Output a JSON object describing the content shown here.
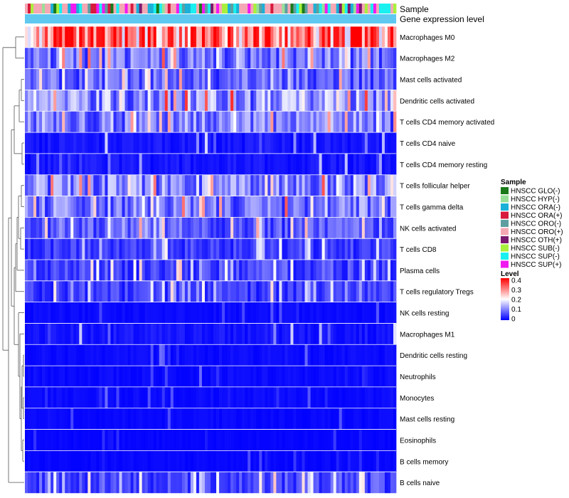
{
  "chart_data": {
    "type": "heatmap",
    "title": "",
    "annotation_rows": [
      "Sample",
      "Gene expression level"
    ],
    "rows": [
      "Macrophages M0",
      "Macrophages M2",
      "Mast cells activated",
      "Dendritic cells activated",
      "T cells CD4 memory activated",
      "T cells CD4 naive",
      "T cells CD4 memory resting",
      "T cells follicular helper",
      "T cells gamma delta",
      "NK cells activated",
      "T cells CD8",
      "Plasma cells",
      "T cells regulatory  Tregs",
      "NK cells resting",
      "Macrophages M1",
      "Dendritic cells resting",
      "Neutrophils",
      "Monocytes",
      "Mast cells resting",
      "Eosinophils",
      "B cells memory",
      "B cells naive"
    ],
    "n_columns": 130,
    "row_mean_level": [
      0.3,
      0.1,
      0.08,
      0.12,
      0.1,
      0.03,
      0.03,
      0.11,
      0.1,
      0.07,
      0.05,
      0.06,
      0.05,
      0.015,
      0.03,
      0.015,
      0.015,
      0.015,
      0.012,
      0.008,
      0.01,
      0.06
    ],
    "color_scale": {
      "range": [
        0,
        0.4
      ],
      "colors": [
        "#0000ff",
        "#ffffff",
        "#ff0000"
      ],
      "midpoint": 0.2
    },
    "legend": {
      "sample_title": "Sample",
      "sample_items": [
        {
          "label": "HNSCC GLO(-)",
          "color": "#1a7a1a"
        },
        {
          "label": "HNSCC HYP(-)",
          "color": "#98e098"
        },
        {
          "label": "HNSCC ORA(-)",
          "color": "#1ab0d8"
        },
        {
          "label": "HNSCC ORA(+)",
          "color": "#d81a3c"
        },
        {
          "label": "HNSCC ORO(-)",
          "color": "#5f9ea0"
        },
        {
          "label": "HNSCC ORO(+)",
          "color": "#f4a8b4"
        },
        {
          "label": "HNSCC OTH(+)",
          "color": "#7a1a6e"
        },
        {
          "label": "HNSCC SUB(-)",
          "color": "#a8f03c"
        },
        {
          "label": "HNSCC SUP(-)",
          "color": "#1af0f0"
        },
        {
          "label": "HNSCC SUP(+)",
          "color": "#f01af0"
        }
      ],
      "level_title": "Level",
      "level_ticks": [
        "0.4",
        "0.3",
        "0.2",
        "0.1",
        "0"
      ]
    },
    "gene_expression_color": "#5ec8f0"
  }
}
